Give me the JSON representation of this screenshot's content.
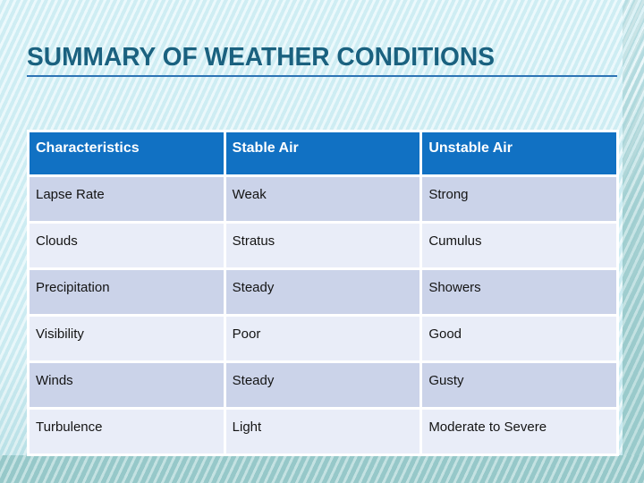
{
  "slide": {
    "title": "SUMMARY OF WEATHER CONDITIONS"
  },
  "table": {
    "headers": [
      "Characteristics",
      "Stable Air",
      "Unstable Air"
    ],
    "rows": [
      [
        "Lapse Rate",
        "Weak",
        "Strong"
      ],
      [
        "Clouds",
        "Stratus",
        "Cumulus"
      ],
      [
        "Precipitation",
        "Steady",
        "Showers"
      ],
      [
        "Visibility",
        "Poor",
        "Good"
      ],
      [
        "Winds",
        "Steady",
        "Gusty"
      ],
      [
        "Turbulence",
        "Light",
        "Moderate to Severe"
      ]
    ]
  },
  "colors": {
    "background": "#D9F2F7",
    "accent_band": "#A5D2D3",
    "header_bg": "#1171C3",
    "header_text": "#FFFFFF",
    "row_odd": "#CBD3E9",
    "row_even": "#E9EDF8",
    "body_text": "#141414",
    "title_text": "#1A617F",
    "title_underline": "#2E74B5"
  }
}
